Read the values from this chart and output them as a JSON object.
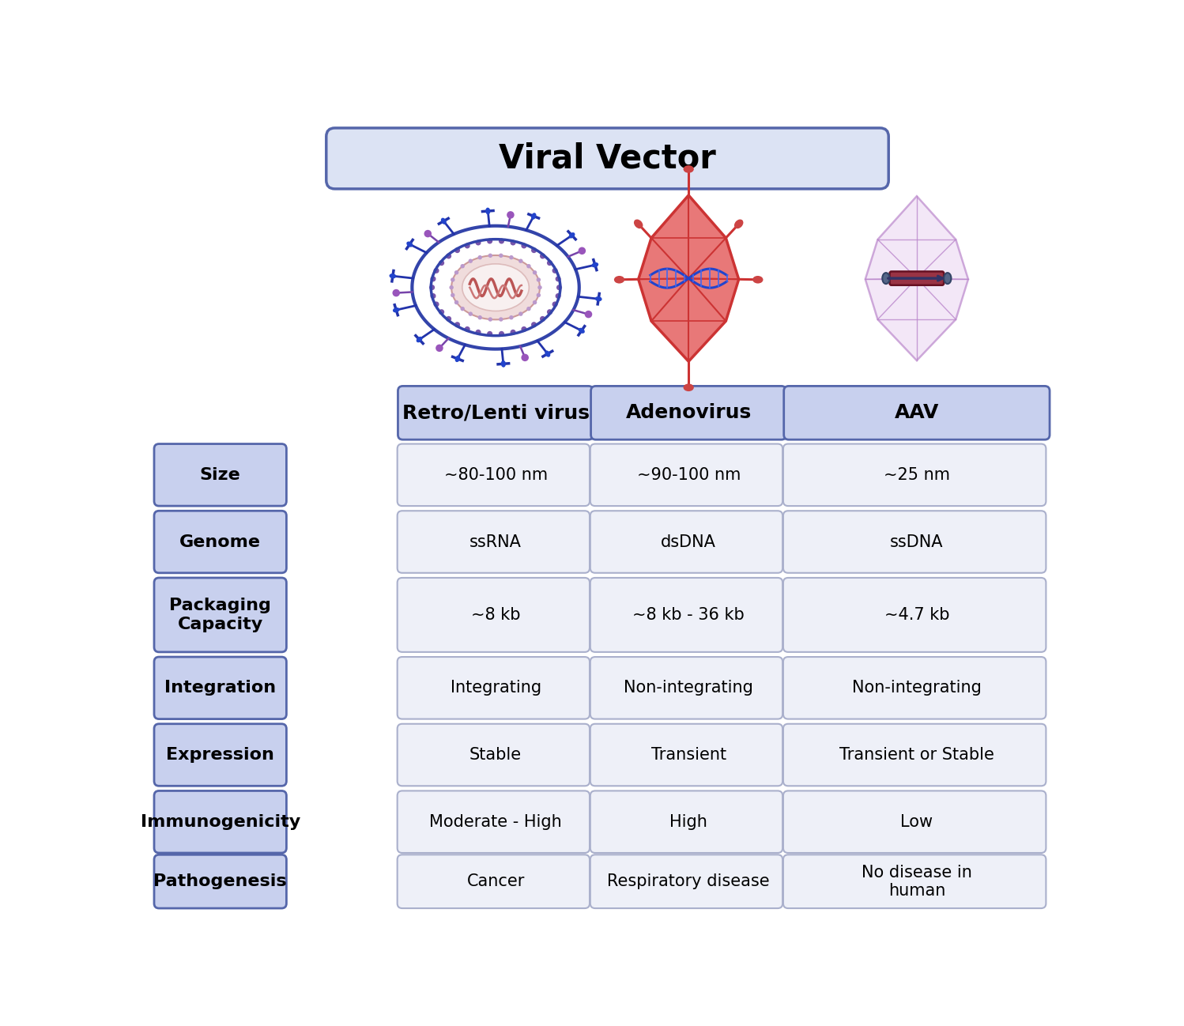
{
  "title": "Viral Vector",
  "title_bg": "#dce3f4",
  "title_border": "#5566aa",
  "title_fontsize": 30,
  "title_fontweight": "bold",
  "col_headers": [
    "Retro/Lenti virus",
    "Adenovirus",
    "AAV"
  ],
  "col_header_bg": "#c8d0ee",
  "col_header_border": "#5566aa",
  "col_header_fontsize": 18,
  "col_header_fontweight": "bold",
  "row_labels": [
    "Size",
    "Genome",
    "Packaging\nCapacity",
    "Integration",
    "Expression",
    "Immunogenicity",
    "Pathogenesis"
  ],
  "row_label_bg": "#c8d0ee",
  "row_label_border": "#5566aa",
  "row_label_fontsize": 16,
  "row_label_fontweight": "bold",
  "cell_bg": "#eef0f8",
  "cell_border": "#aab0cc",
  "cell_fontsize": 15,
  "data": [
    [
      "~80-100 nm",
      "~90-100 nm",
      "~25 nm"
    ],
    [
      "ssRNA",
      "dsDNA",
      "ssDNA"
    ],
    [
      "~8 kb",
      "~8 kb - 36 kb",
      "~4.7 kb"
    ],
    [
      "Integrating",
      "Non-integrating",
      "Non-integrating"
    ],
    [
      "Stable",
      "Transient",
      "Transient or Stable"
    ],
    [
      "Moderate - High",
      "High",
      "Low"
    ],
    [
      "Cancer",
      "Respiratory disease",
      "No disease in\nhuman"
    ]
  ],
  "bg_color": "#ffffff"
}
